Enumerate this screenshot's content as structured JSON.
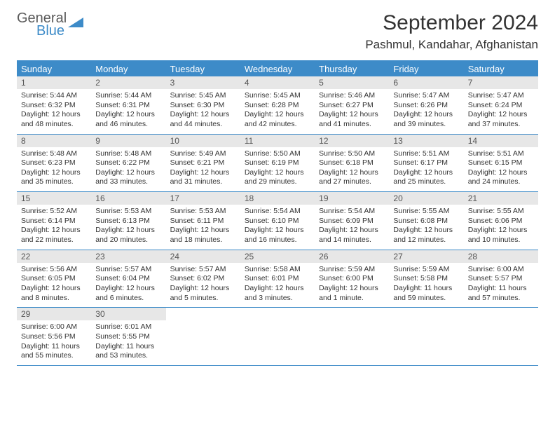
{
  "logo": {
    "general": "General",
    "blue": "Blue"
  },
  "header": {
    "title": "September 2024",
    "location": "Pashmul, Kandahar, Afghanistan"
  },
  "colors": {
    "accent": "#3d8bc8",
    "dayband": "#e7e7e7",
    "text": "#333333",
    "logo_gray": "#5a5a5a"
  },
  "weekdays": [
    "Sunday",
    "Monday",
    "Tuesday",
    "Wednesday",
    "Thursday",
    "Friday",
    "Saturday"
  ],
  "weeks": [
    [
      {
        "n": "1",
        "sr": "Sunrise: 5:44 AM",
        "ss": "Sunset: 6:32 PM",
        "dl": "Daylight: 12 hours and 48 minutes."
      },
      {
        "n": "2",
        "sr": "Sunrise: 5:44 AM",
        "ss": "Sunset: 6:31 PM",
        "dl": "Daylight: 12 hours and 46 minutes."
      },
      {
        "n": "3",
        "sr": "Sunrise: 5:45 AM",
        "ss": "Sunset: 6:30 PM",
        "dl": "Daylight: 12 hours and 44 minutes."
      },
      {
        "n": "4",
        "sr": "Sunrise: 5:45 AM",
        "ss": "Sunset: 6:28 PM",
        "dl": "Daylight: 12 hours and 42 minutes."
      },
      {
        "n": "5",
        "sr": "Sunrise: 5:46 AM",
        "ss": "Sunset: 6:27 PM",
        "dl": "Daylight: 12 hours and 41 minutes."
      },
      {
        "n": "6",
        "sr": "Sunrise: 5:47 AM",
        "ss": "Sunset: 6:26 PM",
        "dl": "Daylight: 12 hours and 39 minutes."
      },
      {
        "n": "7",
        "sr": "Sunrise: 5:47 AM",
        "ss": "Sunset: 6:24 PM",
        "dl": "Daylight: 12 hours and 37 minutes."
      }
    ],
    [
      {
        "n": "8",
        "sr": "Sunrise: 5:48 AM",
        "ss": "Sunset: 6:23 PM",
        "dl": "Daylight: 12 hours and 35 minutes."
      },
      {
        "n": "9",
        "sr": "Sunrise: 5:48 AM",
        "ss": "Sunset: 6:22 PM",
        "dl": "Daylight: 12 hours and 33 minutes."
      },
      {
        "n": "10",
        "sr": "Sunrise: 5:49 AM",
        "ss": "Sunset: 6:21 PM",
        "dl": "Daylight: 12 hours and 31 minutes."
      },
      {
        "n": "11",
        "sr": "Sunrise: 5:50 AM",
        "ss": "Sunset: 6:19 PM",
        "dl": "Daylight: 12 hours and 29 minutes."
      },
      {
        "n": "12",
        "sr": "Sunrise: 5:50 AM",
        "ss": "Sunset: 6:18 PM",
        "dl": "Daylight: 12 hours and 27 minutes."
      },
      {
        "n": "13",
        "sr": "Sunrise: 5:51 AM",
        "ss": "Sunset: 6:17 PM",
        "dl": "Daylight: 12 hours and 25 minutes."
      },
      {
        "n": "14",
        "sr": "Sunrise: 5:51 AM",
        "ss": "Sunset: 6:15 PM",
        "dl": "Daylight: 12 hours and 24 minutes."
      }
    ],
    [
      {
        "n": "15",
        "sr": "Sunrise: 5:52 AM",
        "ss": "Sunset: 6:14 PM",
        "dl": "Daylight: 12 hours and 22 minutes."
      },
      {
        "n": "16",
        "sr": "Sunrise: 5:53 AM",
        "ss": "Sunset: 6:13 PM",
        "dl": "Daylight: 12 hours and 20 minutes."
      },
      {
        "n": "17",
        "sr": "Sunrise: 5:53 AM",
        "ss": "Sunset: 6:11 PM",
        "dl": "Daylight: 12 hours and 18 minutes."
      },
      {
        "n": "18",
        "sr": "Sunrise: 5:54 AM",
        "ss": "Sunset: 6:10 PM",
        "dl": "Daylight: 12 hours and 16 minutes."
      },
      {
        "n": "19",
        "sr": "Sunrise: 5:54 AM",
        "ss": "Sunset: 6:09 PM",
        "dl": "Daylight: 12 hours and 14 minutes."
      },
      {
        "n": "20",
        "sr": "Sunrise: 5:55 AM",
        "ss": "Sunset: 6:08 PM",
        "dl": "Daylight: 12 hours and 12 minutes."
      },
      {
        "n": "21",
        "sr": "Sunrise: 5:55 AM",
        "ss": "Sunset: 6:06 PM",
        "dl": "Daylight: 12 hours and 10 minutes."
      }
    ],
    [
      {
        "n": "22",
        "sr": "Sunrise: 5:56 AM",
        "ss": "Sunset: 6:05 PM",
        "dl": "Daylight: 12 hours and 8 minutes."
      },
      {
        "n": "23",
        "sr": "Sunrise: 5:57 AM",
        "ss": "Sunset: 6:04 PM",
        "dl": "Daylight: 12 hours and 6 minutes."
      },
      {
        "n": "24",
        "sr": "Sunrise: 5:57 AM",
        "ss": "Sunset: 6:02 PM",
        "dl": "Daylight: 12 hours and 5 minutes."
      },
      {
        "n": "25",
        "sr": "Sunrise: 5:58 AM",
        "ss": "Sunset: 6:01 PM",
        "dl": "Daylight: 12 hours and 3 minutes."
      },
      {
        "n": "26",
        "sr": "Sunrise: 5:59 AM",
        "ss": "Sunset: 6:00 PM",
        "dl": "Daylight: 12 hours and 1 minute."
      },
      {
        "n": "27",
        "sr": "Sunrise: 5:59 AM",
        "ss": "Sunset: 5:58 PM",
        "dl": "Daylight: 11 hours and 59 minutes."
      },
      {
        "n": "28",
        "sr": "Sunrise: 6:00 AM",
        "ss": "Sunset: 5:57 PM",
        "dl": "Daylight: 11 hours and 57 minutes."
      }
    ],
    [
      {
        "n": "29",
        "sr": "Sunrise: 6:00 AM",
        "ss": "Sunset: 5:56 PM",
        "dl": "Daylight: 11 hours and 55 minutes."
      },
      {
        "n": "30",
        "sr": "Sunrise: 6:01 AM",
        "ss": "Sunset: 5:55 PM",
        "dl": "Daylight: 11 hours and 53 minutes."
      },
      {
        "empty": true
      },
      {
        "empty": true
      },
      {
        "empty": true
      },
      {
        "empty": true
      },
      {
        "empty": true
      }
    ]
  ]
}
